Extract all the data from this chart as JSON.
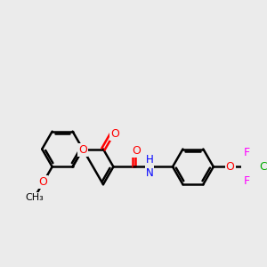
{
  "bg_color": "#ebebeb",
  "bond_color": "#000000",
  "bond_width": 1.8,
  "atom_colors": {
    "O": "#ff0000",
    "N": "#0000ff",
    "F": "#ff00ff",
    "Cl": "#00aa00",
    "C": "#000000",
    "H": "#000000"
  },
  "font_size": 9,
  "fig_size": [
    3.0,
    3.0
  ],
  "dpi": 100
}
